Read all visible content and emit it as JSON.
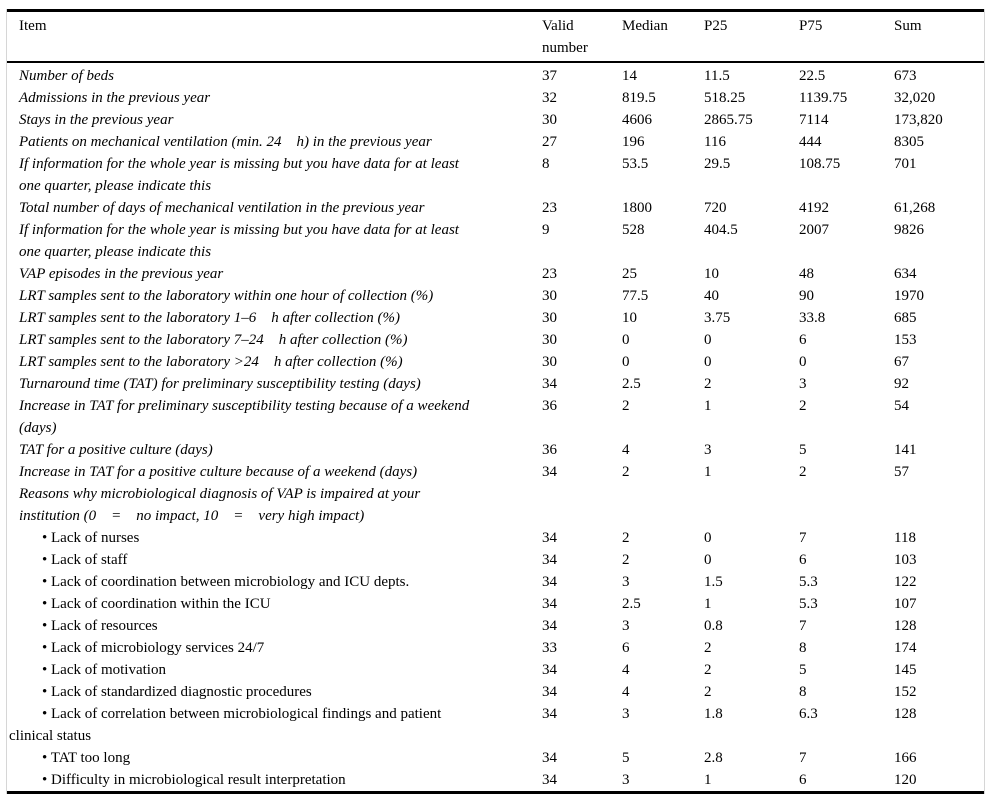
{
  "page": {
    "background": "#ffffff",
    "rule_color": "#000000",
    "side_border_color": "#d6d6d6",
    "text_color": "#000000"
  },
  "table": {
    "header": {
      "item": "Item",
      "valid": "Valid number",
      "median": "Median",
      "p25": "P25",
      "p75": "P75",
      "sum": "Sum"
    },
    "rows": [
      {
        "variant": "item",
        "item": "Number of beds",
        "valid": "37",
        "median": "14",
        "p25": "11.5",
        "p75": "22.5",
        "sum": "673"
      },
      {
        "variant": "item",
        "item": "Admissions in the previous year",
        "valid": "32",
        "median": "819.5",
        "p25": "518.25",
        "p75": "1139.75",
        "sum": "32,020"
      },
      {
        "variant": "item",
        "item": "Stays in the previous year",
        "valid": "30",
        "median": "4606",
        "p25": "2865.75",
        "p75": "7114",
        "sum": "173,820"
      },
      {
        "variant": "item",
        "item": "Patients on mechanical ventilation (min. 24    h) in the previous year",
        "valid": "27",
        "median": "196",
        "p25": "116",
        "p75": "444",
        "sum": "8305"
      },
      {
        "variant": "item",
        "item": "If information for the whole year is missing but you have data for at least\none quarter, please indicate this",
        "valid": "8",
        "median": "53.5",
        "p25": "29.5",
        "p75": "108.75",
        "sum": "701"
      },
      {
        "variant": "item",
        "item": "Total number of days of mechanical ventilation in the previous year",
        "valid": "23",
        "median": "1800",
        "p25": "720",
        "p75": "4192",
        "sum": "61,268"
      },
      {
        "variant": "item",
        "item": "If information for the whole year is missing but you have data for at least\none quarter, please indicate this",
        "valid": "9",
        "median": "528",
        "p25": "404.5",
        "p75": "2007",
        "sum": "9826"
      },
      {
        "variant": "item",
        "item": "VAP episodes in the previous year",
        "valid": "23",
        "median": "25",
        "p25": "10",
        "p75": "48",
        "sum": "634"
      },
      {
        "variant": "item",
        "item": "LRT samples sent to the laboratory within one hour of collection (%)",
        "valid": "30",
        "median": "77.5",
        "p25": "40",
        "p75": "90",
        "sum": "1970"
      },
      {
        "variant": "item",
        "item": "LRT samples sent to the laboratory 1–6    h after collection (%)",
        "valid": "30",
        "median": "10",
        "p25": "3.75",
        "p75": "33.8",
        "sum": "685"
      },
      {
        "variant": "item",
        "item": "LRT samples sent to the laboratory 7–24    h after collection (%)",
        "valid": "30",
        "median": "0",
        "p25": "0",
        "p75": "6",
        "sum": "153"
      },
      {
        "variant": "item",
        "item": "LRT samples sent to the laboratory >24    h after collection (%)",
        "valid": "30",
        "median": "0",
        "p25": "0",
        "p75": "0",
        "sum": "67"
      },
      {
        "variant": "item",
        "item": "Turnaround time (TAT) for preliminary susceptibility testing (days)",
        "valid": "34",
        "median": "2.5",
        "p25": "2",
        "p75": "3",
        "sum": "92"
      },
      {
        "variant": "item",
        "item": "Increase in TAT for preliminary susceptibility testing because of a weekend\n(days)",
        "valid": "36",
        "median": "2",
        "p25": "1",
        "p75": "2",
        "sum": "54"
      },
      {
        "variant": "item",
        "item": "TAT for a positive culture (days)",
        "valid": "36",
        "median": "4",
        "p25": "3",
        "p75": "5",
        "sum": "141"
      },
      {
        "variant": "item",
        "item": "Increase in TAT for a positive culture because of a weekend (days)",
        "valid": "34",
        "median": "2",
        "p25": "1",
        "p75": "2",
        "sum": "57"
      },
      {
        "variant": "item",
        "item": "Reasons why microbiological diagnosis of VAP is impaired at your\ninstitution (0    =    no impact, 10    =    very high impact)",
        "valid": "",
        "median": "",
        "p25": "",
        "p75": "",
        "sum": ""
      },
      {
        "variant": "bullet",
        "item": "• Lack of nurses",
        "valid": "34",
        "median": "2",
        "p25": "0",
        "p75": "7",
        "sum": "118"
      },
      {
        "variant": "bullet",
        "item": "• Lack of staff",
        "valid": "34",
        "median": "2",
        "p25": "0",
        "p75": "6",
        "sum": "103"
      },
      {
        "variant": "bullet",
        "item": "• Lack of coordination between microbiology and ICU depts.",
        "valid": "34",
        "median": "3",
        "p25": "1.5",
        "p75": "5.3",
        "sum": "122"
      },
      {
        "variant": "bullet",
        "item": "• Lack of coordination within the ICU",
        "valid": "34",
        "median": "2.5",
        "p25": "1",
        "p75": "5.3",
        "sum": "107"
      },
      {
        "variant": "bullet",
        "item": "• Lack of resources",
        "valid": "34",
        "median": "3",
        "p25": "0.8",
        "p75": "7",
        "sum": "128"
      },
      {
        "variant": "bullet",
        "item": "• Lack of microbiology services 24/7",
        "valid": "33",
        "median": "6",
        "p25": "2",
        "p75": "8",
        "sum": "174"
      },
      {
        "variant": "bullet",
        "item": "• Lack of motivation",
        "valid": "34",
        "median": "4",
        "p25": "2",
        "p75": "5",
        "sum": "145"
      },
      {
        "variant": "bullet",
        "item": "• Lack of standardized diagnostic procedures",
        "valid": "34",
        "median": "4",
        "p25": "2",
        "p75": "8",
        "sum": "152"
      },
      {
        "variant": "bullet",
        "item": "• Lack of correlation between microbiological findings and patient\nclinical status",
        "valid": "34",
        "median": "3",
        "p25": "1.8",
        "p75": "6.3",
        "sum": "128"
      },
      {
        "variant": "bullet",
        "item": "• TAT too long",
        "valid": "34",
        "median": "5",
        "p25": "2.8",
        "p75": "7",
        "sum": "166"
      },
      {
        "variant": "bullet",
        "item": "• Difficulty in microbiological result interpretation",
        "valid": "34",
        "median": "3",
        "p25": "1",
        "p75": "6",
        "sum": "120"
      }
    ]
  }
}
